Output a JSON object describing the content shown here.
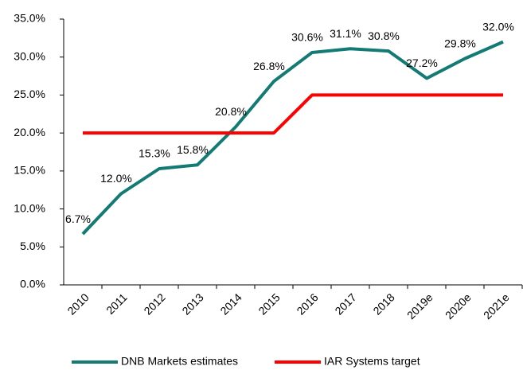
{
  "chart_data": {
    "type": "line",
    "categories": [
      "2010",
      "2011",
      "2012",
      "2013",
      "2014",
      "2015",
      "2016",
      "2017",
      "2018",
      "2019e",
      "2020e",
      "2021e"
    ],
    "series": [
      {
        "name": "DNB Markets estimates",
        "color": "#137a74",
        "values": [
          6.7,
          12.0,
          15.3,
          15.8,
          20.8,
          26.8,
          30.6,
          31.1,
          30.8,
          27.2,
          29.8,
          32.0
        ],
        "value_labels": [
          "6.7%",
          "12.0%",
          "15.3%",
          "15.8%",
          "20.8%",
          "26.8%",
          "30.6%",
          "31.1%",
          "30.8%",
          "27.2%",
          "29.8%",
          "32.0%"
        ]
      },
      {
        "name": "IAR Systems target",
        "color": "#ff0000",
        "values": [
          20,
          20,
          20,
          20,
          20,
          20,
          25,
          25,
          25,
          25,
          25,
          25
        ]
      }
    ],
    "ylim": [
      0,
      35
    ],
    "yticks": [
      {
        "value": 0,
        "label": "0.0%"
      },
      {
        "value": 5,
        "label": "5.0%"
      },
      {
        "value": 10,
        "label": "10.0%"
      },
      {
        "value": 15,
        "label": "15.0%"
      },
      {
        "value": 20,
        "label": "20.0%"
      },
      {
        "value": 25,
        "label": "25.0%"
      },
      {
        "value": 30,
        "label": "30.0%"
      },
      {
        "value": 35,
        "label": "35.0%"
      }
    ],
    "legend": "bottom"
  }
}
